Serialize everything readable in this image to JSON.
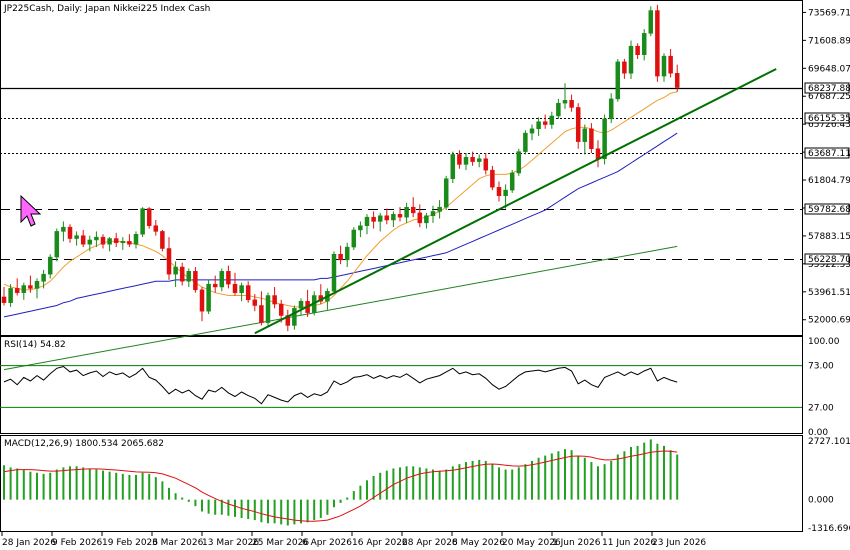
{
  "chart_data": {
    "type": "candlestick",
    "title": "JP225Cash, Daily:  Japan Nikkei225 Index Cash",
    "colors": {
      "bull": "#1a8a1a",
      "bear": "#e01010",
      "ma_fast": "#f0a030",
      "ma_mid": "#2020c0",
      "ma_slow": "#208020",
      "trendline": "#007000",
      "macd_hist": "#22a022",
      "macd_signal": "#e01010",
      "rsi_line": "#000000",
      "rsi_level": "#008000"
    },
    "price_axis": {
      "ticks": [
        "73569.71",
        "71608.89",
        "69648.07",
        "67687.25",
        "65726.43",
        "63765.61",
        "61804.79",
        "59843.97",
        "57883.15",
        "55922.33",
        "53961.51",
        "52000.69"
      ],
      "range": [
        51000,
        74300
      ]
    },
    "levels": [
      {
        "label": "68237.88",
        "value": 68237.88,
        "style": "solid"
      },
      {
        "label": "66155.35",
        "value": 66155.35,
        "style": "dotted"
      },
      {
        "label": "63687.11",
        "value": 63687.11,
        "style": "dotted"
      },
      {
        "label": "59782.68",
        "value": 59782.68,
        "style": "dashed"
      },
      {
        "label": "56228.70",
        "value": 56228.7,
        "style": "dashed"
      }
    ],
    "x_labels": [
      "28 Jan 2026",
      "9 Feb 2026",
      "19 Feb 2026",
      "3 Mar 2026",
      "13 Mar 2026",
      "25 Mar 2026",
      "6 Apr 2026",
      "16 Apr 2026",
      "28 Apr 2026",
      "8 May 2026",
      "20 May 2026",
      "1 Jun 2026",
      "11 Jun 2026",
      "23 Jun 2026"
    ],
    "candles": [
      [
        53600,
        54300,
        53000,
        53200
      ],
      [
        53200,
        54500,
        52900,
        54200
      ],
      [
        54200,
        54900,
        53700,
        53900
      ],
      [
        53900,
        54600,
        53400,
        54400
      ],
      [
        54400,
        55100,
        53900,
        54200
      ],
      [
        54200,
        54900,
        53500,
        54700
      ],
      [
        54700,
        55500,
        54200,
        55200
      ],
      [
        55200,
        56600,
        54900,
        56400
      ],
      [
        56400,
        58400,
        56100,
        58200
      ],
      [
        58200,
        58900,
        57500,
        58500
      ],
      [
        58500,
        58700,
        57400,
        57700
      ],
      [
        57700,
        58200,
        57200,
        57900
      ],
      [
        57900,
        58300,
        57100,
        57300
      ],
      [
        57300,
        57900,
        56800,
        57600
      ],
      [
        57600,
        58200,
        57100,
        57800
      ],
      [
        57800,
        58000,
        57000,
        57300
      ],
      [
        57300,
        57800,
        56800,
        57700
      ],
      [
        57700,
        58100,
        57100,
        57400
      ],
      [
        57400,
        57800,
        56900,
        57500
      ],
      [
        57500,
        58000,
        57100,
        57300
      ],
      [
        57300,
        58200,
        57000,
        58000
      ],
      [
        58000,
        59900,
        57800,
        59800
      ],
      [
        59800,
        59900,
        58400,
        58600
      ],
      [
        58600,
        59000,
        57900,
        58200
      ],
      [
        58200,
        58300,
        56800,
        57000
      ],
      [
        57000,
        57800,
        54800,
        55200
      ],
      [
        55200,
        56100,
        54300,
        55700
      ],
      [
        55700,
        56000,
        54400,
        54700
      ],
      [
        54700,
        55600,
        54300,
        55400
      ],
      [
        55400,
        55700,
        53900,
        54100
      ],
      [
        54100,
        54300,
        51900,
        52600
      ],
      [
        52600,
        54800,
        52400,
        54500
      ],
      [
        54500,
        55100,
        53900,
        54300
      ],
      [
        54300,
        55600,
        54000,
        55400
      ],
      [
        55400,
        55800,
        54200,
        54500
      ],
      [
        54500,
        55300,
        53700,
        53900
      ],
      [
        53900,
        54600,
        53300,
        54400
      ],
      [
        54400,
        54700,
        53200,
        53400
      ],
      [
        53400,
        53800,
        52600,
        53000
      ],
      [
        53000,
        54000,
        51600,
        51800
      ],
      [
        51800,
        53900,
        51500,
        53700
      ],
      [
        53700,
        54300,
        52800,
        53100
      ],
      [
        53100,
        53400,
        51800,
        52300
      ],
      [
        52300,
        52700,
        51200,
        51600
      ],
      [
        51600,
        53000,
        51300,
        52800
      ],
      [
        52800,
        53500,
        52300,
        53300
      ],
      [
        53300,
        54100,
        52200,
        52500
      ],
      [
        52500,
        54000,
        52300,
        53700
      ],
      [
        53700,
        54500,
        53100,
        53300
      ],
      [
        53300,
        54200,
        52700,
        54000
      ],
      [
        54000,
        56800,
        53800,
        56600
      ],
      [
        56600,
        57200,
        55900,
        56200
      ],
      [
        56200,
        57400,
        55700,
        57100
      ],
      [
        57100,
        58500,
        56900,
        58300
      ],
      [
        58300,
        58900,
        57800,
        58600
      ],
      [
        58600,
        59400,
        58000,
        59200
      ],
      [
        59200,
        59600,
        58400,
        58900
      ],
      [
        58900,
        59500,
        58200,
        59300
      ],
      [
        59300,
        59800,
        58700,
        59000
      ],
      [
        59000,
        59600,
        58500,
        59400
      ],
      [
        59400,
        59900,
        58900,
        59200
      ],
      [
        59200,
        60200,
        58800,
        59900
      ],
      [
        59900,
        60600,
        59200,
        59500
      ],
      [
        59500,
        60100,
        58500,
        58800
      ],
      [
        58800,
        59500,
        58400,
        59300
      ],
      [
        59300,
        60000,
        58800,
        59600
      ],
      [
        59600,
        60400,
        59100,
        59900
      ],
      [
        59900,
        62100,
        59700,
        61900
      ],
      [
        61900,
        63800,
        61600,
        63600
      ],
      [
        63600,
        63900,
        62600,
        62900
      ],
      [
        62900,
        63700,
        62500,
        63400
      ],
      [
        63400,
        63800,
        62800,
        63100
      ],
      [
        63100,
        63600,
        62700,
        63300
      ],
      [
        63300,
        63700,
        62200,
        62500
      ],
      [
        62500,
        62800,
        61100,
        61300
      ],
      [
        61300,
        61700,
        60300,
        60700
      ],
      [
        60700,
        61500,
        59800,
        61100
      ],
      [
        61100,
        62500,
        60900,
        62300
      ],
      [
        62300,
        64000,
        62100,
        63800
      ],
      [
        63800,
        65300,
        63600,
        65100
      ],
      [
        65100,
        65700,
        64600,
        65400
      ],
      [
        65400,
        66200,
        64900,
        65900
      ],
      [
        65900,
        66400,
        65400,
        65700
      ],
      [
        65700,
        66600,
        65400,
        66300
      ],
      [
        66300,
        67500,
        66100,
        67200
      ],
      [
        67200,
        68600,
        66800,
        67400
      ],
      [
        67400,
        67800,
        66600,
        66900
      ],
      [
        66900,
        67200,
        64000,
        64500
      ],
      [
        64500,
        65700,
        63600,
        65400
      ],
      [
        65400,
        65800,
        63700,
        64000
      ],
      [
        64000,
        64600,
        62700,
        63300
      ],
      [
        63300,
        66400,
        62900,
        66100
      ],
      [
        66100,
        67900,
        65800,
        67500
      ],
      [
        67500,
        70300,
        67300,
        70100
      ],
      [
        70100,
        70300,
        68900,
        69300
      ],
      [
        69300,
        71600,
        68900,
        71200
      ],
      [
        71200,
        71400,
        70300,
        70600
      ],
      [
        70600,
        72400,
        70200,
        72100
      ],
      [
        72100,
        74000,
        71900,
        73700
      ],
      [
        73700,
        74100,
        68700,
        69100
      ],
      [
        69100,
        70700,
        68700,
        70500
      ],
      [
        70500,
        71000,
        69000,
        69300
      ],
      [
        69300,
        69900,
        68000,
        68300
      ]
    ],
    "ma_fast": [
      54500,
      54300,
      54200,
      54100,
      54100,
      54200,
      54400,
      54700,
      55200,
      55700,
      56100,
      56400,
      56700,
      57000,
      57200,
      57400,
      57500,
      57500,
      57500,
      57400,
      57300,
      57200,
      57000,
      56800,
      56500,
      56100,
      55700,
      55300,
      54900,
      54600,
      54300,
      54100,
      53900,
      53800,
      53700,
      53700,
      53700,
      53700,
      53600,
      53500,
      53400,
      53200,
      53100,
      53000,
      52900,
      52900,
      52900,
      53000,
      53100,
      53300,
      53700,
      54200,
      54700,
      55300,
      55900,
      56500,
      57000,
      57500,
      57900,
      58300,
      58600,
      58800,
      59000,
      59100,
      59200,
      59400,
      59600,
      59900,
      60300,
      60700,
      61100,
      61500,
      61900,
      62100,
      62200,
      62200,
      62200,
      62300,
      62500,
      62800,
      63200,
      63600,
      64000,
      64400,
      64800,
      65200,
      65400,
      65500,
      65500,
      65400,
      65200,
      65100,
      65300,
      65600,
      65900,
      66200,
      66500,
      66800,
      67100,
      67400,
      67600,
      67900,
      68000
    ],
    "ma_mid": [
      52200,
      52300,
      52400,
      52500,
      52600,
      52700,
      52800,
      52900,
      53000,
      53200,
      53300,
      53500,
      53600,
      53700,
      53800,
      53900,
      54000,
      54100,
      54200,
      54300,
      54400,
      54500,
      54600,
      54700,
      54700,
      54700,
      54800,
      54800,
      54800,
      54800,
      54800,
      54800,
      54800,
      54800,
      54800,
      54800,
      54800,
      54800,
      54800,
      54800,
      54800,
      54800,
      54800,
      54800,
      54800,
      54800,
      54800,
      54800,
      54900,
      54900,
      55000,
      55100,
      55200,
      55300,
      55400,
      55500,
      55600,
      55700,
      55800,
      55900,
      56000,
      56100,
      56200,
      56300,
      56400,
      56500,
      56600,
      56700,
      56900,
      57100,
      57300,
      57500,
      57700,
      57900,
      58100,
      58300,
      58500,
      58700,
      58900,
      59100,
      59300,
      59500,
      59700,
      60000,
      60300,
      60600,
      60900,
      61200,
      61400,
      61600,
      61800,
      62000,
      62200,
      62400,
      62700,
      63000,
      63300,
      63600,
      63900,
      64200,
      64500,
      64800,
      65100
    ],
    "ma_slow": [
      [
        0,
        48500
      ],
      [
        102,
        57150
      ]
    ],
    "trendline": [
      [
        38,
        51050
      ],
      [
        117,
        69600
      ]
    ],
    "rsi": {
      "label": "RSI(14) 54.82",
      "ticks": [
        "100.00",
        "73.00",
        "27.00",
        "0.00"
      ],
      "levels": [
        73,
        27
      ],
      "values": [
        55,
        58,
        52,
        60,
        56,
        62,
        57,
        64,
        70,
        72,
        66,
        68,
        62,
        65,
        67,
        61,
        66,
        63,
        65,
        60,
        64,
        70,
        60,
        57,
        50,
        42,
        47,
        43,
        46,
        40,
        36,
        46,
        44,
        49,
        43,
        39,
        44,
        40,
        37,
        31,
        41,
        38,
        35,
        33,
        40,
        43,
        38,
        42,
        40,
        44,
        56,
        52,
        55,
        60,
        61,
        63,
        59,
        62,
        59,
        62,
        60,
        64,
        59,
        54,
        58,
        60,
        62,
        66,
        70,
        64,
        66,
        63,
        64,
        59,
        52,
        47,
        50,
        56,
        62,
        66,
        67,
        68,
        66,
        68,
        70,
        71,
        67,
        53,
        57,
        52,
        49,
        60,
        63,
        66,
        62,
        66,
        63,
        67,
        70,
        56,
        60,
        57,
        54.82
      ]
    },
    "macd": {
      "label": "MACD(12,26,9) 1800.534 2065.682",
      "ticks": [
        "2727.101",
        "0.000",
        "-1316.696"
      ],
      "hist": [
        1600,
        1500,
        1450,
        1400,
        1300,
        1250,
        1200,
        1250,
        1400,
        1500,
        1550,
        1550,
        1500,
        1450,
        1400,
        1350,
        1300,
        1250,
        1200,
        1150,
        1150,
        1250,
        1200,
        1050,
        850,
        550,
        300,
        100,
        -100,
        -300,
        -550,
        -650,
        -700,
        -700,
        -750,
        -800,
        -850,
        -900,
        -950,
        -1050,
        -1100,
        -1100,
        -1150,
        -1200,
        -1150,
        -1100,
        -1050,
        -950,
        -850,
        -700,
        -350,
        -150,
        100,
        400,
        650,
        900,
        1100,
        1250,
        1350,
        1450,
        1500,
        1550,
        1550,
        1500,
        1450,
        1400,
        1350,
        1400,
        1550,
        1650,
        1750,
        1800,
        1850,
        1800,
        1650,
        1500,
        1400,
        1400,
        1500,
        1650,
        1800,
        1950,
        2050,
        2150,
        2250,
        2350,
        2300,
        2050,
        1950,
        1750,
        1550,
        1650,
        1800,
        2100,
        2250,
        2450,
        2500,
        2650,
        2800,
        2600,
        2500,
        2300,
        2100
      ],
      "signal": [
        1300,
        1350,
        1400,
        1400,
        1400,
        1380,
        1350,
        1330,
        1330,
        1350,
        1380,
        1400,
        1420,
        1430,
        1430,
        1420,
        1400,
        1380,
        1350,
        1320,
        1290,
        1280,
        1270,
        1250,
        1200,
        1100,
        1000,
        850,
        700,
        550,
        350,
        200,
        50,
        -80,
        -200,
        -300,
        -400,
        -480,
        -560,
        -650,
        -730,
        -800,
        -850,
        -900,
        -950,
        -980,
        -1000,
        -1000,
        -980,
        -950,
        -850,
        -750,
        -600,
        -450,
        -300,
        -100,
        100,
        300,
        500,
        700,
        850,
        1000,
        1100,
        1200,
        1260,
        1300,
        1320,
        1340,
        1370,
        1420,
        1480,
        1540,
        1600,
        1650,
        1660,
        1640,
        1600,
        1570,
        1560,
        1580,
        1620,
        1680,
        1750,
        1820,
        1890,
        1960,
        2020,
        2030,
        2020,
        1980,
        1900,
        1850,
        1850,
        1890,
        1950,
        2020,
        2070,
        2130,
        2200,
        2240,
        2260,
        2250,
        2210
      ]
    }
  }
}
